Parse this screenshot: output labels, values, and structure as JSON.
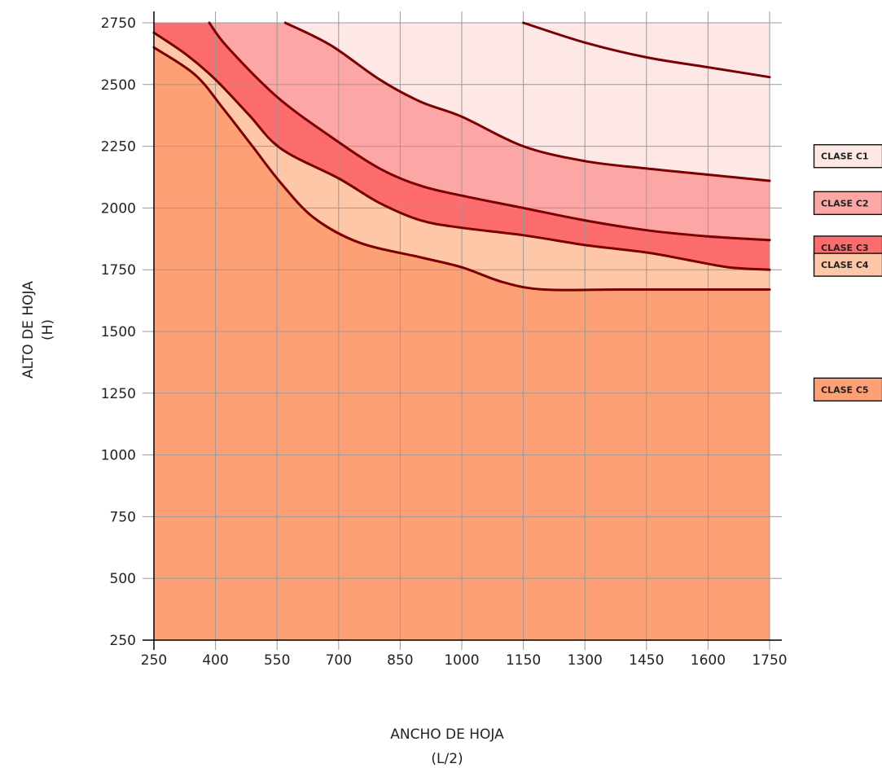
{
  "chart_data": {
    "type": "area",
    "title": "",
    "xlabel": "ANCHO DE HOJA",
    "xlabel_sub": "(L/2)",
    "ylabel": "ALTO DE HOJA",
    "ylabel_sub": "(H)",
    "xlim": [
      250,
      1750
    ],
    "ylim": [
      250,
      2750
    ],
    "x_ticks": [
      250,
      400,
      550,
      700,
      850,
      1000,
      1150,
      1300,
      1450,
      1600,
      1750
    ],
    "y_ticks": [
      250,
      500,
      750,
      1000,
      1250,
      1500,
      1750,
      2000,
      2250,
      2500,
      2750
    ],
    "grid": true,
    "legend_position": "right",
    "boundary_color": "#7a0000",
    "classes": [
      {
        "name": "CLASE C1",
        "color": "#fde8e6",
        "legend_value": 2210
      },
      {
        "name": "CLASE C2",
        "color": "#fca7a6",
        "legend_value": 2020
      },
      {
        "name": "CLASE C3",
        "color": "#fd6c6c",
        "legend_value": 1840
      },
      {
        "name": "CLASE C4",
        "color": "#fdc7a8",
        "legend_value": 1770
      },
      {
        "name": "CLASE C5",
        "color": "#fda076",
        "legend_value": 1265
      }
    ],
    "boundaries": [
      {
        "name": "C1/C2",
        "points": [
          [
            570,
            2750
          ],
          [
            680,
            2660
          ],
          [
            800,
            2520
          ],
          [
            900,
            2430
          ],
          [
            1000,
            2370
          ],
          [
            1150,
            2250
          ],
          [
            1300,
            2190
          ],
          [
            1450,
            2160
          ],
          [
            1600,
            2135
          ],
          [
            1750,
            2110
          ]
        ]
      },
      {
        "name": "C2/C3",
        "points": [
          [
            385,
            2750
          ],
          [
            430,
            2650
          ],
          [
            550,
            2450
          ],
          [
            680,
            2290
          ],
          [
            800,
            2160
          ],
          [
            900,
            2090
          ],
          [
            1000,
            2050
          ],
          [
            1150,
            2000
          ],
          [
            1300,
            1950
          ],
          [
            1450,
            1910
          ],
          [
            1600,
            1885
          ],
          [
            1750,
            1870
          ]
        ]
      },
      {
        "name": "C3/C4",
        "points": [
          [
            250,
            2710
          ],
          [
            330,
            2620
          ],
          [
            400,
            2520
          ],
          [
            480,
            2380
          ],
          [
            560,
            2240
          ],
          [
            700,
            2120
          ],
          [
            800,
            2020
          ],
          [
            900,
            1950
          ],
          [
            1000,
            1920
          ],
          [
            1150,
            1890
          ],
          [
            1300,
            1850
          ],
          [
            1450,
            1820
          ],
          [
            1550,
            1790
          ],
          [
            1650,
            1760
          ],
          [
            1750,
            1750
          ]
        ]
      },
      {
        "name": "C4/C5",
        "points": [
          [
            250,
            2650
          ],
          [
            350,
            2540
          ],
          [
            420,
            2400
          ],
          [
            490,
            2250
          ],
          [
            560,
            2100
          ],
          [
            640,
            1960
          ],
          [
            750,
            1860
          ],
          [
            900,
            1800
          ],
          [
            1000,
            1760
          ],
          [
            1100,
            1700
          ],
          [
            1200,
            1670
          ],
          [
            1400,
            1670
          ],
          [
            1750,
            1670
          ]
        ]
      },
      {
        "name": "C1 upper",
        "points": [
          [
            1150,
            2750
          ],
          [
            1300,
            2670
          ],
          [
            1450,
            2610
          ],
          [
            1600,
            2570
          ],
          [
            1750,
            2530
          ]
        ]
      }
    ]
  }
}
